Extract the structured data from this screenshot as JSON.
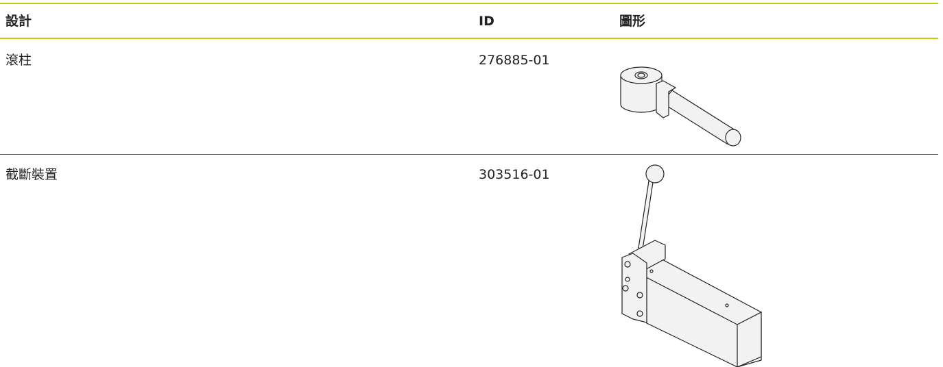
{
  "table": {
    "columns": [
      "設計",
      "ID",
      "圖形"
    ],
    "rows": [
      [
        "滾柱",
        "276885-01"
      ],
      [
        "截斷裝置",
        "303516-01"
      ]
    ]
  }
}
